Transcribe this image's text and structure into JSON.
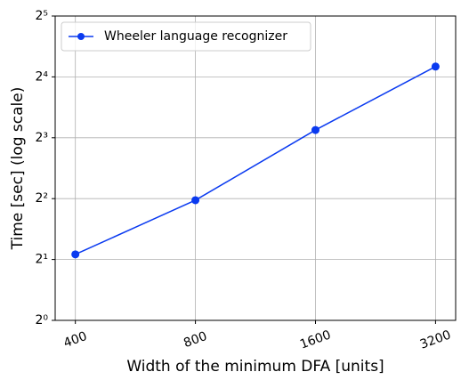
{
  "chart_data": {
    "type": "line",
    "xlabel": "Width of the minimum DFA [units]",
    "ylabel": "Time [sec] (log scale)",
    "x": [
      400,
      800,
      1600,
      3200
    ],
    "series": [
      {
        "name": "Wheeler language recognizer",
        "color": "#0a3af0",
        "values": [
          2.12,
          3.93,
          8.74,
          18.0
        ]
      }
    ],
    "xscale": "log2",
    "yscale": "log2",
    "xlim": [
      356,
      3594
    ],
    "xticks": [
      400,
      800,
      1600,
      3200
    ],
    "ylim": [
      1,
      32
    ],
    "yticks": [
      {
        "value": 1,
        "label": "2⁰"
      },
      {
        "value": 2,
        "label": "2¹"
      },
      {
        "value": 4,
        "label": "2²"
      },
      {
        "value": 8,
        "label": "2³"
      },
      {
        "value": 16,
        "label": "2⁴"
      },
      {
        "value": 32,
        "label": "2⁵"
      }
    ],
    "grid": true,
    "legend_loc": "upper left"
  }
}
